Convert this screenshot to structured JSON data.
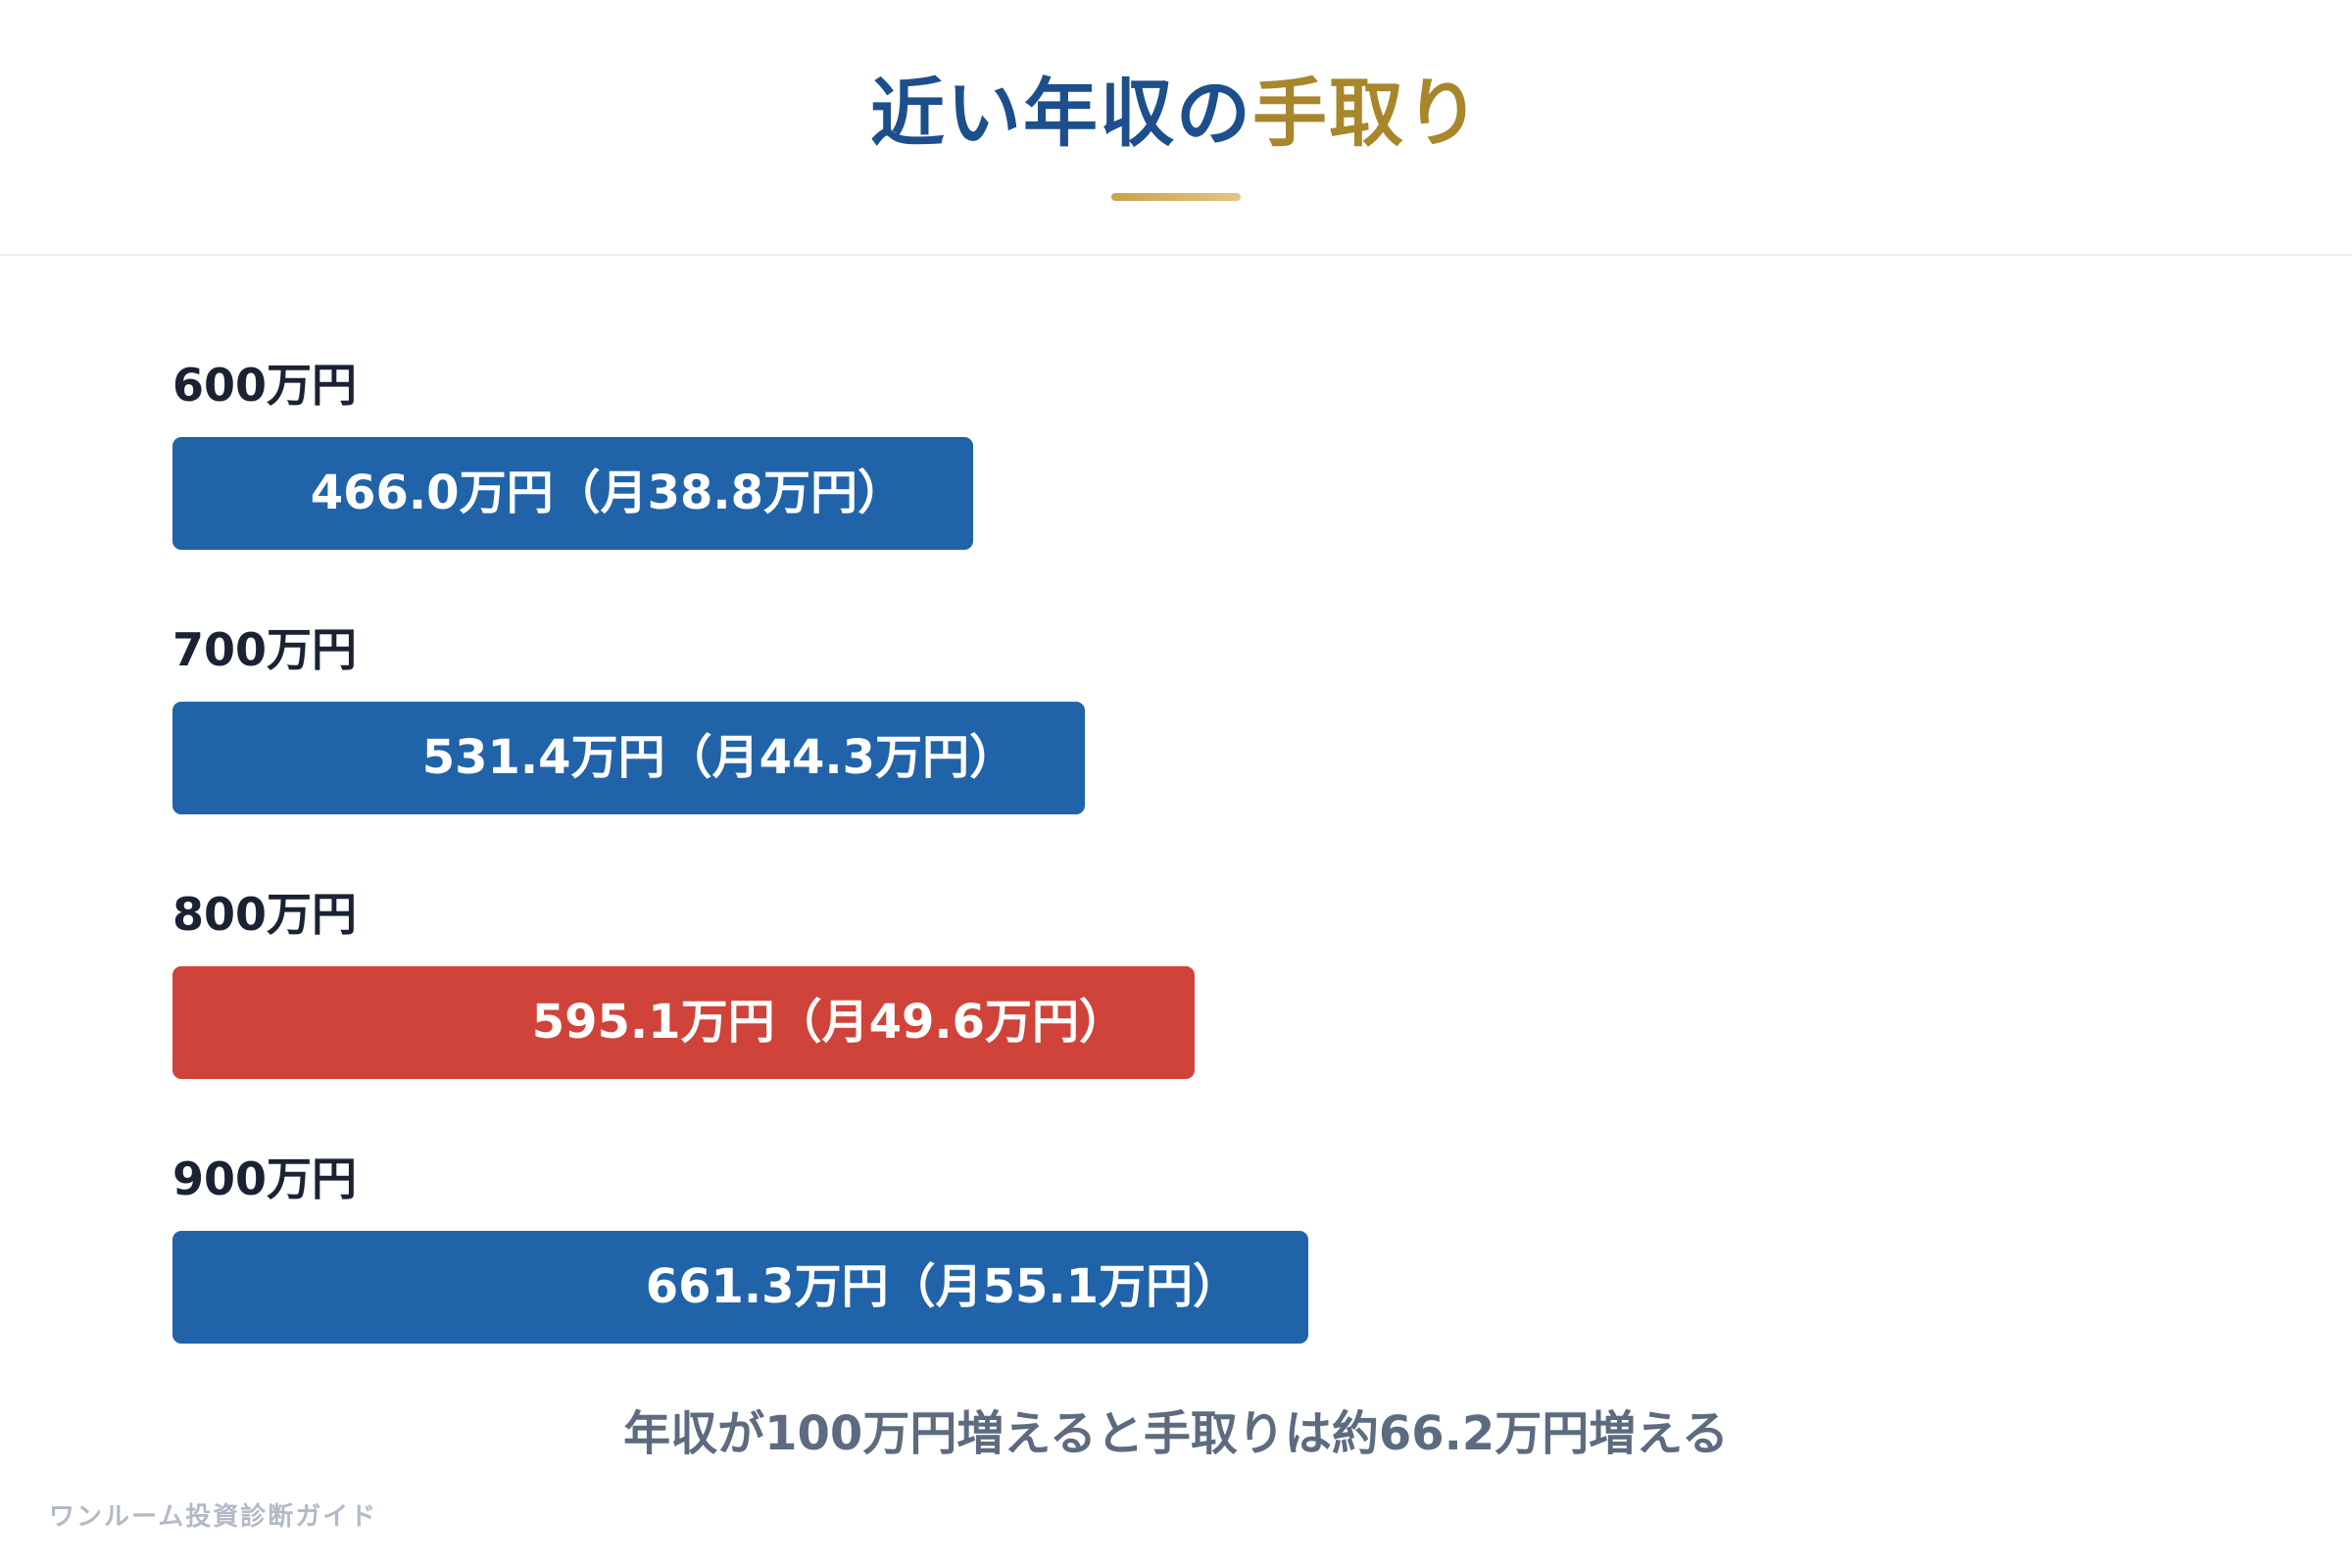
{
  "title": {
    "part1": "近い年収の",
    "part2": "手取り"
  },
  "chart_data": {
    "type": "bar",
    "orientation": "horizontal",
    "categories": [
      "600万円",
      "700万円",
      "800万円",
      "900万円"
    ],
    "values": [
      466.0,
      531.4,
      595.1,
      661.3
    ],
    "value_labels": [
      "466.0万円（月38.8万円）",
      "531.4万円（月44.3万円）",
      "595.1万円（月49.6万円）",
      "661.3万円（月55.1万円）"
    ],
    "highlight_index": 2,
    "colors": {
      "default": "#2163a9",
      "highlight": "#d0433a"
    },
    "xlim": [
      0,
      761.3
    ],
    "grid": false,
    "legend": "none"
  },
  "note": "年収が100万円増えると手取りは約66.2万円増える",
  "footer": "ワンルーム投資診断ガイド",
  "colors": {
    "title_primary": "#1d4f8c",
    "title_accent": "#a8862c",
    "bar_default": "#2163a9",
    "bar_highlight": "#d0433a"
  }
}
